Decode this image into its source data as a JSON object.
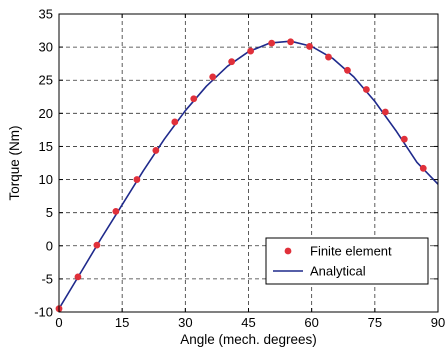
{
  "chart_data": {
    "type": "line",
    "xlabel": "Angle (mech. degrees)",
    "ylabel": "Torque (Nm)",
    "xlim": [
      0,
      90
    ],
    "ylim": [
      -10,
      35
    ],
    "xticks": [
      0,
      15,
      30,
      45,
      60,
      75,
      90
    ],
    "yticks": [
      -10,
      -5,
      0,
      5,
      10,
      15,
      20,
      25,
      30,
      35
    ],
    "grid": true,
    "grid_style": "dashed",
    "legend_position": "bottom-right",
    "series": [
      {
        "name": "Finite element",
        "kind": "scatter",
        "color": "#e0303a",
        "x": [
          0,
          4.5,
          9,
          13.5,
          18.5,
          23,
          27.5,
          32,
          36.5,
          41,
          45.5,
          50.5,
          55,
          59.5,
          64,
          68.5,
          73,
          77.5,
          82,
          86.5
        ],
        "y": [
          -9.5,
          -4.7,
          0.1,
          5.2,
          10,
          14.4,
          18.7,
          22.2,
          25.5,
          27.8,
          29.4,
          30.6,
          30.8,
          30.1,
          28.5,
          26.5,
          23.6,
          20.2,
          16.1,
          11.7
        ]
      },
      {
        "name": "Analytical",
        "kind": "line",
        "color": "#1f2a8c",
        "x": [
          0,
          5,
          10,
          15,
          20,
          25,
          30,
          35,
          40,
          45,
          50,
          55,
          60,
          65,
          70,
          75,
          80,
          85,
          90
        ],
        "y": [
          -9.5,
          -4.2,
          1.1,
          6.2,
          11.3,
          16.1,
          20.4,
          24.1,
          27.1,
          29.3,
          30.6,
          30.9,
          30.1,
          28.3,
          25.5,
          21.8,
          17.4,
          12.6,
          9.3
        ]
      }
    ]
  }
}
